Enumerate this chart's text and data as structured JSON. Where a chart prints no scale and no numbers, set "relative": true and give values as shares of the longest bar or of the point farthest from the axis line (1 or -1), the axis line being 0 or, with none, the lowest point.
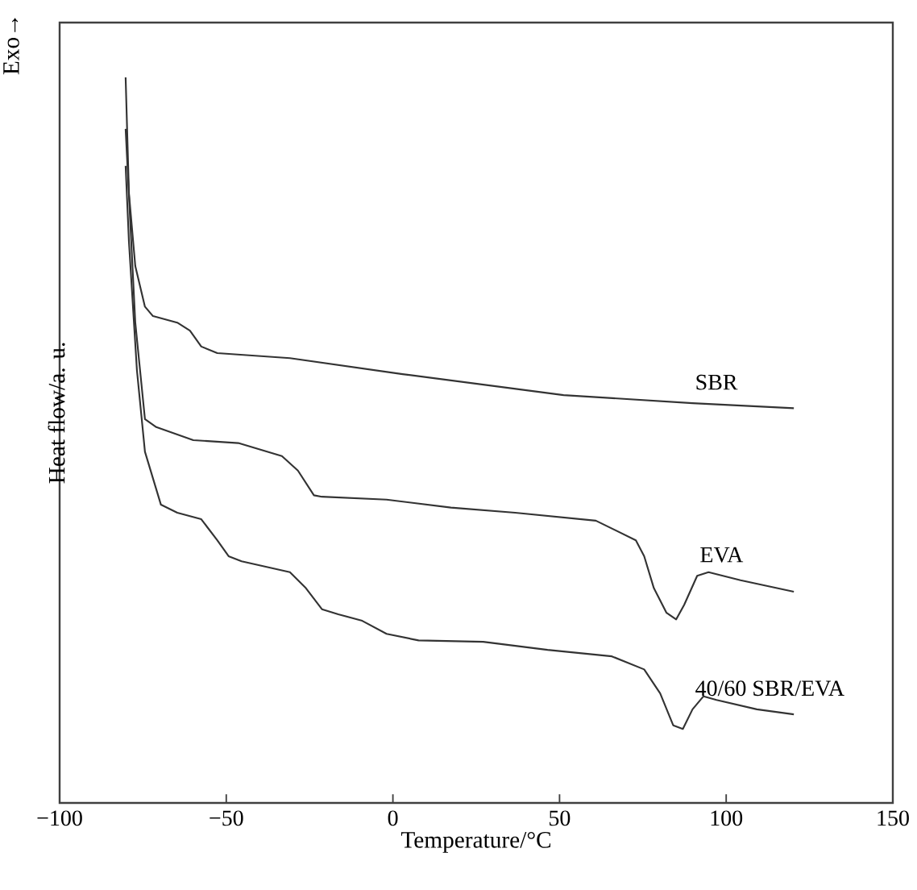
{
  "chart_data": {
    "type": "line",
    "relative": true,
    "xlabel": "Temperature/°C",
    "ylabel": "Heat flow/a. u.",
    "annotations": [
      "Exo→"
    ],
    "tick_labels": "x",
    "xlim": [
      -100,
      150
    ],
    "xticks": [
      {
        "value": -100,
        "label": "−100"
      },
      {
        "value": -50,
        "label": "−50"
      },
      0,
      50,
      100,
      150
    ],
    "series": [
      {
        "name": "SBR",
        "color": "#333333",
        "x": [
          -80.2,
          -79.2,
          -77.3,
          -74.4,
          -72,
          -64.7,
          -60.9,
          -57.5,
          -52.7,
          -30.9,
          2.9,
          51.2,
          89.9,
          120.3
        ],
        "values": [
          1.0,
          0.84,
          0.74,
          0.684,
          0.671,
          0.662,
          0.651,
          0.629,
          0.62,
          0.613,
          0.591,
          0.562,
          0.551,
          0.544
        ]
      },
      {
        "name": "EVA",
        "color": "#333333",
        "x": [
          -80.2,
          -77.3,
          -74.4,
          -71,
          -59.9,
          -46.4,
          -33.3,
          -28.5,
          -23.7,
          -21.3,
          -1.9,
          17.4,
          36.7,
          60.9,
          72.9,
          75.4,
          78.3,
          82.1,
          85,
          87.4,
          91.3,
          94.7,
          104.3,
          120.3
        ],
        "values": [
          0.929,
          0.662,
          0.529,
          0.518,
          0.5,
          0.496,
          0.478,
          0.458,
          0.424,
          0.422,
          0.418,
          0.407,
          0.4,
          0.389,
          0.362,
          0.34,
          0.296,
          0.262,
          0.253,
          0.273,
          0.313,
          0.318,
          0.307,
          0.291
        ]
      },
      {
        "name": "40/60 SBR/EVA",
        "color": "#333333",
        "x": [
          -80.2,
          -79.2,
          -76.8,
          -74.4,
          -69.6,
          -64.7,
          -57.5,
          -52.7,
          -49.3,
          -45.4,
          -30.9,
          -26.1,
          -21.3,
          -16.4,
          -9.2,
          -1.9,
          7.7,
          27.1,
          46.4,
          65.7,
          75.4,
          80.2,
          84.1,
          87,
          89.9,
          93.2,
          97.1,
          109.2,
          120.3
        ],
        "values": [
          0.878,
          0.773,
          0.596,
          0.484,
          0.411,
          0.4,
          0.391,
          0.362,
          0.34,
          0.333,
          0.318,
          0.296,
          0.267,
          0.26,
          0.251,
          0.233,
          0.224,
          0.222,
          0.211,
          0.202,
          0.184,
          0.151,
          0.107,
          0.102,
          0.129,
          0.147,
          0.142,
          0.129,
          0.122
        ]
      }
    ]
  }
}
